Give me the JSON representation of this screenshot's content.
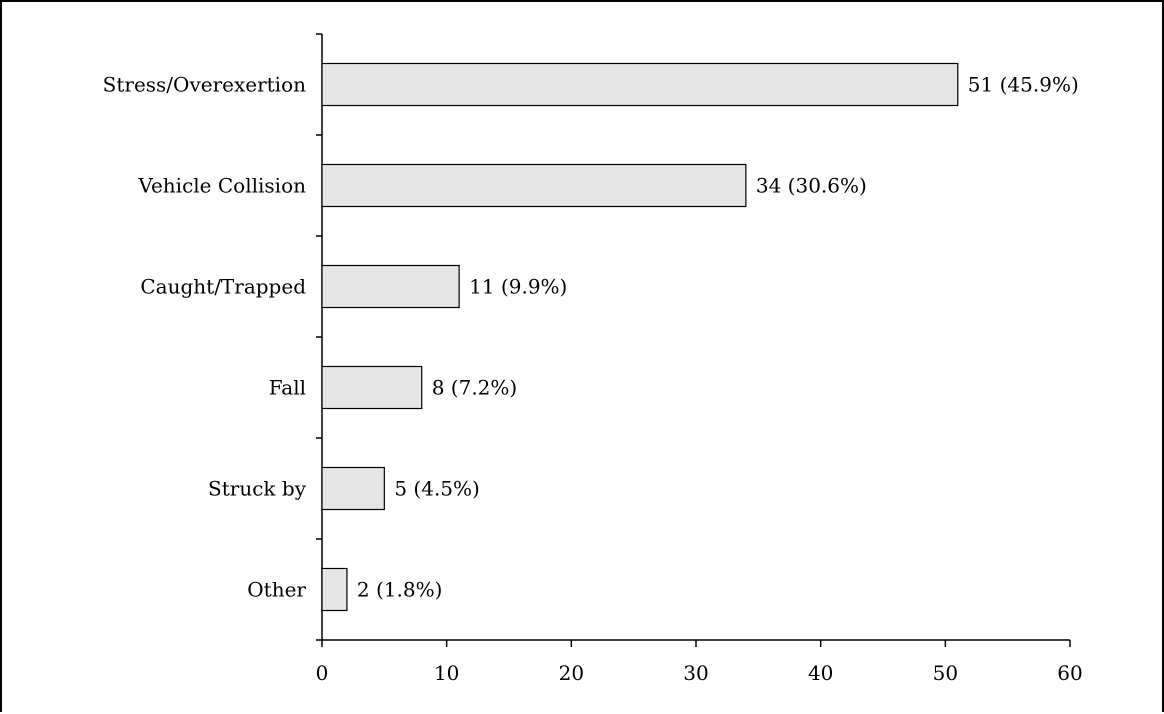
{
  "chart_data": {
    "type": "bar",
    "orientation": "horizontal",
    "title": "",
    "xlabel": "",
    "ylabel": "",
    "categories": [
      "Stress/Overexertion",
      "Vehicle Collision",
      "Caught/Trapped",
      "Fall",
      "Struck by",
      "Other"
    ],
    "values": [
      51,
      34,
      11,
      8,
      5,
      2
    ],
    "value_labels": [
      "51 (45.9%)",
      "34 (30.6%)",
      "11 (9.9%)",
      "8 (7.2%)",
      "5 (4.5%)",
      "2 (1.8%)"
    ],
    "xlim": [
      0,
      60
    ],
    "xticks": [
      0,
      10,
      20,
      30,
      40,
      50,
      60
    ],
    "xtick_labels": [
      "0",
      "10",
      "20",
      "30",
      "40",
      "50",
      "60"
    ],
    "grid": false,
    "legend": "none",
    "bar_color": "#e6e6e6",
    "bar_edge_color": "#000000"
  }
}
